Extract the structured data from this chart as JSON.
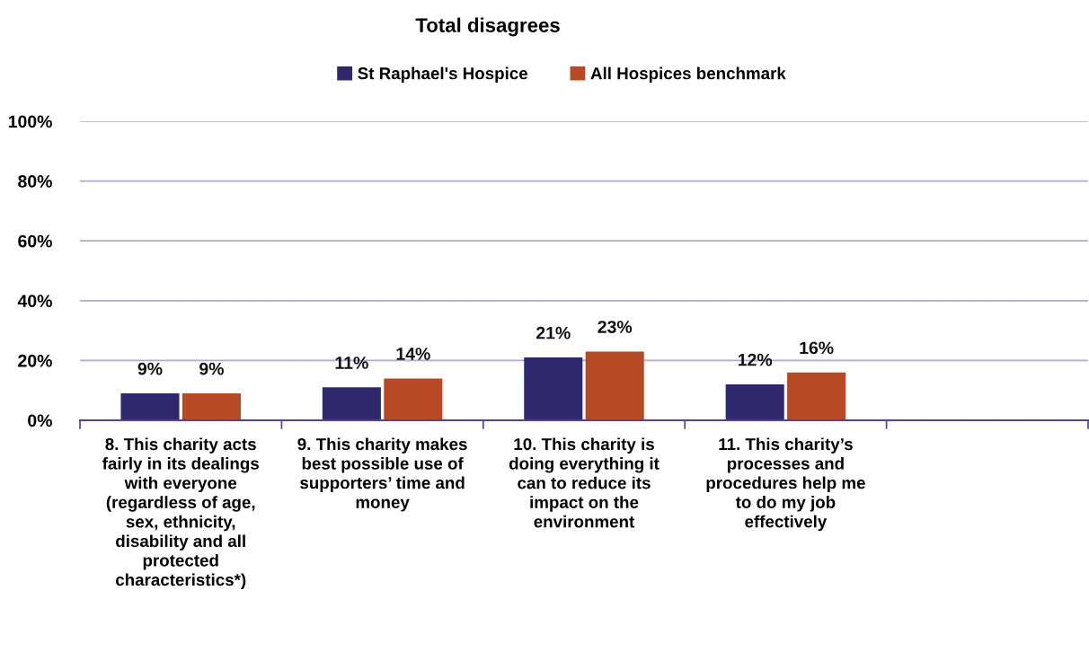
{
  "chart_data": {
    "type": "bar",
    "title": "Total disagrees",
    "categories": [
      "8. This charity acts\nfairly in its dealings\nwith everyone\n(regardless of age,\nsex, ethnicity,\ndisability and all\nprotected\ncharacteristics*)",
      "9. This charity makes\nbest possible use of\nsupporters’ time and\nmoney",
      "10. This charity is\ndoing everything it\ncan to reduce its\nimpact on the\nenvironment",
      "11. This charity’s\nprocesses and\nprocedures help me\nto do my job\neffectively",
      null
    ],
    "series": [
      {
        "name": "St Raphael's Hospice",
        "color": "#30286e",
        "values": [
          9,
          11,
          21,
          12,
          null
        ],
        "value_labels": [
          "9%",
          "11%",
          "21%",
          "12%",
          null
        ]
      },
      {
        "name": "All Hospices benchmark",
        "color": "#b54a24",
        "values": [
          9,
          14,
          23,
          16,
          null
        ],
        "value_labels": [
          "9%",
          "14%",
          "23%",
          "16%",
          null
        ]
      }
    ],
    "ylim": [
      0,
      100
    ],
    "yticks": [
      {
        "value": 0,
        "label": "0%"
      },
      {
        "value": 20,
        "label": "20%"
      },
      {
        "value": 40,
        "label": "40%"
      },
      {
        "value": 60,
        "label": "60%"
      },
      {
        "value": 80,
        "label": "80%"
      },
      {
        "value": 100,
        "label": "100%"
      }
    ],
    "grid": "y",
    "legend": "top"
  }
}
